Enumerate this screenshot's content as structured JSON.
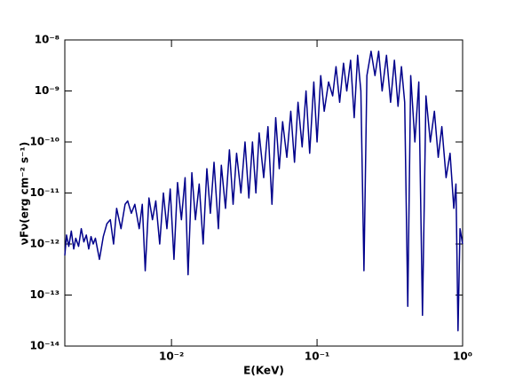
{
  "chart_data": {
    "type": "line",
    "xlabel": "E(KeV)",
    "ylabel": "νFν(erg cm⁻² s⁻¹)",
    "xscale": "log",
    "yscale": "log",
    "xlim": [
      0.00185,
      1.0
    ],
    "ylim": [
      1e-14,
      1e-08
    ],
    "xticks": [
      {
        "value": 0.01,
        "label": "10⁻²"
      },
      {
        "value": 0.1,
        "label": "10⁻¹"
      },
      {
        "value": 1,
        "label": "10⁰"
      }
    ],
    "yticks": [
      {
        "value": 1e-14,
        "label": "10⁻¹⁴"
      },
      {
        "value": 1e-13,
        "label": "10⁻¹³"
      },
      {
        "value": 1e-12,
        "label": "10⁻¹²"
      },
      {
        "value": 1e-11,
        "label": "10⁻¹¹"
      },
      {
        "value": 1e-10,
        "label": "10⁻¹⁰"
      },
      {
        "value": 1e-09,
        "label": "10⁻⁹"
      },
      {
        "value": 1e-08,
        "label": "10⁻⁸"
      }
    ],
    "grid": false,
    "x": [
      0.00185,
      0.0019,
      0.00197,
      0.00205,
      0.00213,
      0.0022,
      0.0023,
      0.0024,
      0.0025,
      0.0026,
      0.0027,
      0.0028,
      0.0029,
      0.003,
      0.0032,
      0.0034,
      0.0036,
      0.0038,
      0.004,
      0.0042,
      0.0045,
      0.0048,
      0.005,
      0.0053,
      0.0056,
      0.006,
      0.0063,
      0.0066,
      0.007,
      0.0074,
      0.0078,
      0.0083,
      0.0088,
      0.0093,
      0.0098,
      0.0104,
      0.011,
      0.0117,
      0.0124,
      0.013,
      0.0138,
      0.0146,
      0.0155,
      0.0165,
      0.0175,
      0.0185,
      0.0196,
      0.021,
      0.022,
      0.0235,
      0.025,
      0.0265,
      0.028,
      0.03,
      0.032,
      0.034,
      0.036,
      0.038,
      0.04,
      0.043,
      0.046,
      0.049,
      0.052,
      0.055,
      0.058,
      0.062,
      0.066,
      0.07,
      0.074,
      0.079,
      0.084,
      0.089,
      0.095,
      0.1,
      0.106,
      0.112,
      0.12,
      0.128,
      0.135,
      0.143,
      0.152,
      0.16,
      0.17,
      0.18,
      0.19,
      0.2,
      0.21,
      0.22,
      0.235,
      0.25,
      0.265,
      0.28,
      0.3,
      0.32,
      0.34,
      0.36,
      0.38,
      0.4,
      0.42,
      0.44,
      0.47,
      0.5,
      0.53,
      0.56,
      0.6,
      0.64,
      0.68,
      0.72,
      0.77,
      0.82,
      0.87,
      0.9,
      0.93,
      0.96,
      1.0
    ],
    "series": [
      {
        "color": "#00008b",
        "values": [
          6e-13,
          1.5e-12,
          9e-13,
          1.8e-12,
          8e-13,
          1.3e-12,
          9e-13,
          2e-12,
          1.1e-12,
          1.5e-12,
          8e-13,
          1.4e-12,
          1e-12,
          1.3e-12,
          5e-13,
          1.4e-12,
          2.5e-12,
          3e-12,
          1e-12,
          5e-12,
          2e-12,
          6e-12,
          7e-12,
          4e-12,
          6e-12,
          2e-12,
          6e-12,
          3e-13,
          8e-12,
          3e-12,
          7e-12,
          1e-12,
          1e-11,
          2e-12,
          1.2e-11,
          5e-13,
          1.6e-11,
          3e-12,
          2e-11,
          2.5e-13,
          2.5e-11,
          3e-12,
          1.5e-11,
          1e-12,
          3e-11,
          4e-12,
          4e-11,
          2e-12,
          3.5e-11,
          5e-12,
          7e-11,
          6e-12,
          6e-11,
          1e-11,
          1e-10,
          8e-12,
          1e-10,
          1e-11,
          1.5e-10,
          2e-11,
          2e-10,
          6e-12,
          3e-10,
          3e-11,
          2.5e-10,
          5e-11,
          4e-10,
          4e-11,
          6e-10,
          8e-11,
          1e-09,
          6e-11,
          1.5e-09,
          1e-10,
          2e-09,
          4e-10,
          1.5e-09,
          8e-10,
          3e-09,
          6e-10,
          3.5e-09,
          1e-09,
          4e-09,
          3e-10,
          5e-09,
          1e-09,
          3e-13,
          2e-09,
          6e-09,
          2e-09,
          6e-09,
          1e-09,
          5e-09,
          6e-10,
          4e-09,
          5e-10,
          3e-09,
          6e-10,
          6e-14,
          2e-09,
          1e-10,
          1.5e-09,
          4e-14,
          8e-10,
          1e-10,
          4e-10,
          5e-11,
          2e-10,
          2e-11,
          6e-11,
          5e-12,
          1.5e-11,
          2e-14,
          2e-12,
          1e-12
        ]
      }
    ]
  }
}
